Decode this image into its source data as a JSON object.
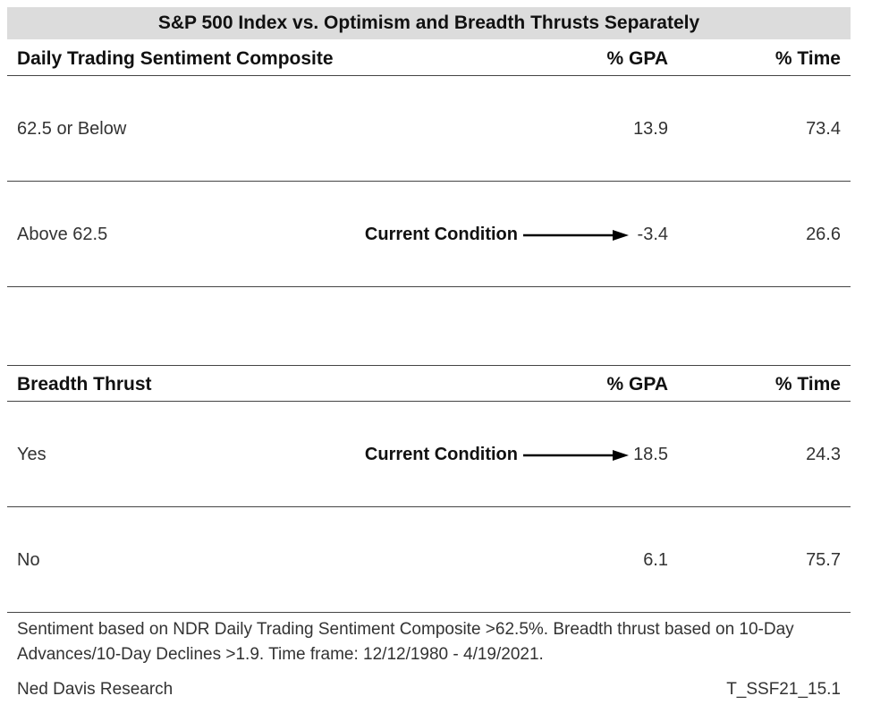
{
  "title": "S&P 500 Index vs. Optimism and Breadth Thrusts Separately",
  "tables": [
    {
      "header": {
        "label": "Daily Trading Sentiment Composite",
        "gpa": "% GPA",
        "time": "% Time"
      },
      "rows": [
        {
          "label": "62.5 or Below",
          "gpa": "13.9",
          "time": "73.4",
          "condition": ""
        },
        {
          "label": "Above 62.5",
          "gpa": "-3.4",
          "time": "26.6",
          "condition": "Current Condition"
        }
      ]
    },
    {
      "header": {
        "label": "Breadth Thrust",
        "gpa": "% GPA",
        "time": "% Time"
      },
      "rows": [
        {
          "label": "Yes",
          "gpa": "18.5",
          "time": "24.3",
          "condition": "Current Condition"
        },
        {
          "label": "No",
          "gpa": "6.1",
          "time": "75.7",
          "condition": ""
        }
      ]
    }
  ],
  "note": "Sentiment based on NDR Daily Trading Sentiment Composite >62.5%. Breadth thrust based on 10-Day Advances/10-Day Declines >1.9. Time frame: 12/12/1980 - 4/19/2021.",
  "footer": {
    "source": "Ned Davis Research",
    "code": "T_SSF21_15.1"
  },
  "colors": {
    "title_bg": "#dcdcdc",
    "rule": "#444444",
    "text": "#333333"
  }
}
